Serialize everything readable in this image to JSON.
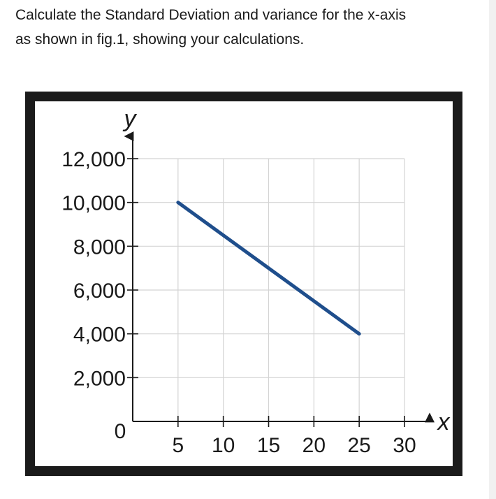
{
  "question": {
    "line1": "Calculate the Standard Deviation and variance for the x-axis",
    "line2": "as shown in fig.1, showing your calculations."
  },
  "chart_data": {
    "type": "line",
    "xlabel": "x",
    "ylabel": "y",
    "x_ticks": [
      5,
      10,
      15,
      20,
      25,
      30
    ],
    "x_tick_labels": [
      "5",
      "10",
      "15",
      "20",
      "25",
      "30"
    ],
    "y_ticks": [
      2000,
      4000,
      6000,
      8000,
      10000,
      12000
    ],
    "y_tick_labels": [
      "2,000",
      "4,000",
      "6,000",
      "8,000",
      "10,000",
      "12,000"
    ],
    "origin_label": "0",
    "xlim": [
      0,
      30
    ],
    "ylim": [
      0,
      12000
    ],
    "grid": true,
    "series": [
      {
        "x": [
          5,
          25
        ],
        "y": [
          10000,
          4000
        ],
        "color": "#1f4e8c"
      }
    ],
    "colors": {
      "line": "#1f4e8c",
      "grid": "#d4d4d4",
      "frame": "#1b1b1b"
    }
  }
}
